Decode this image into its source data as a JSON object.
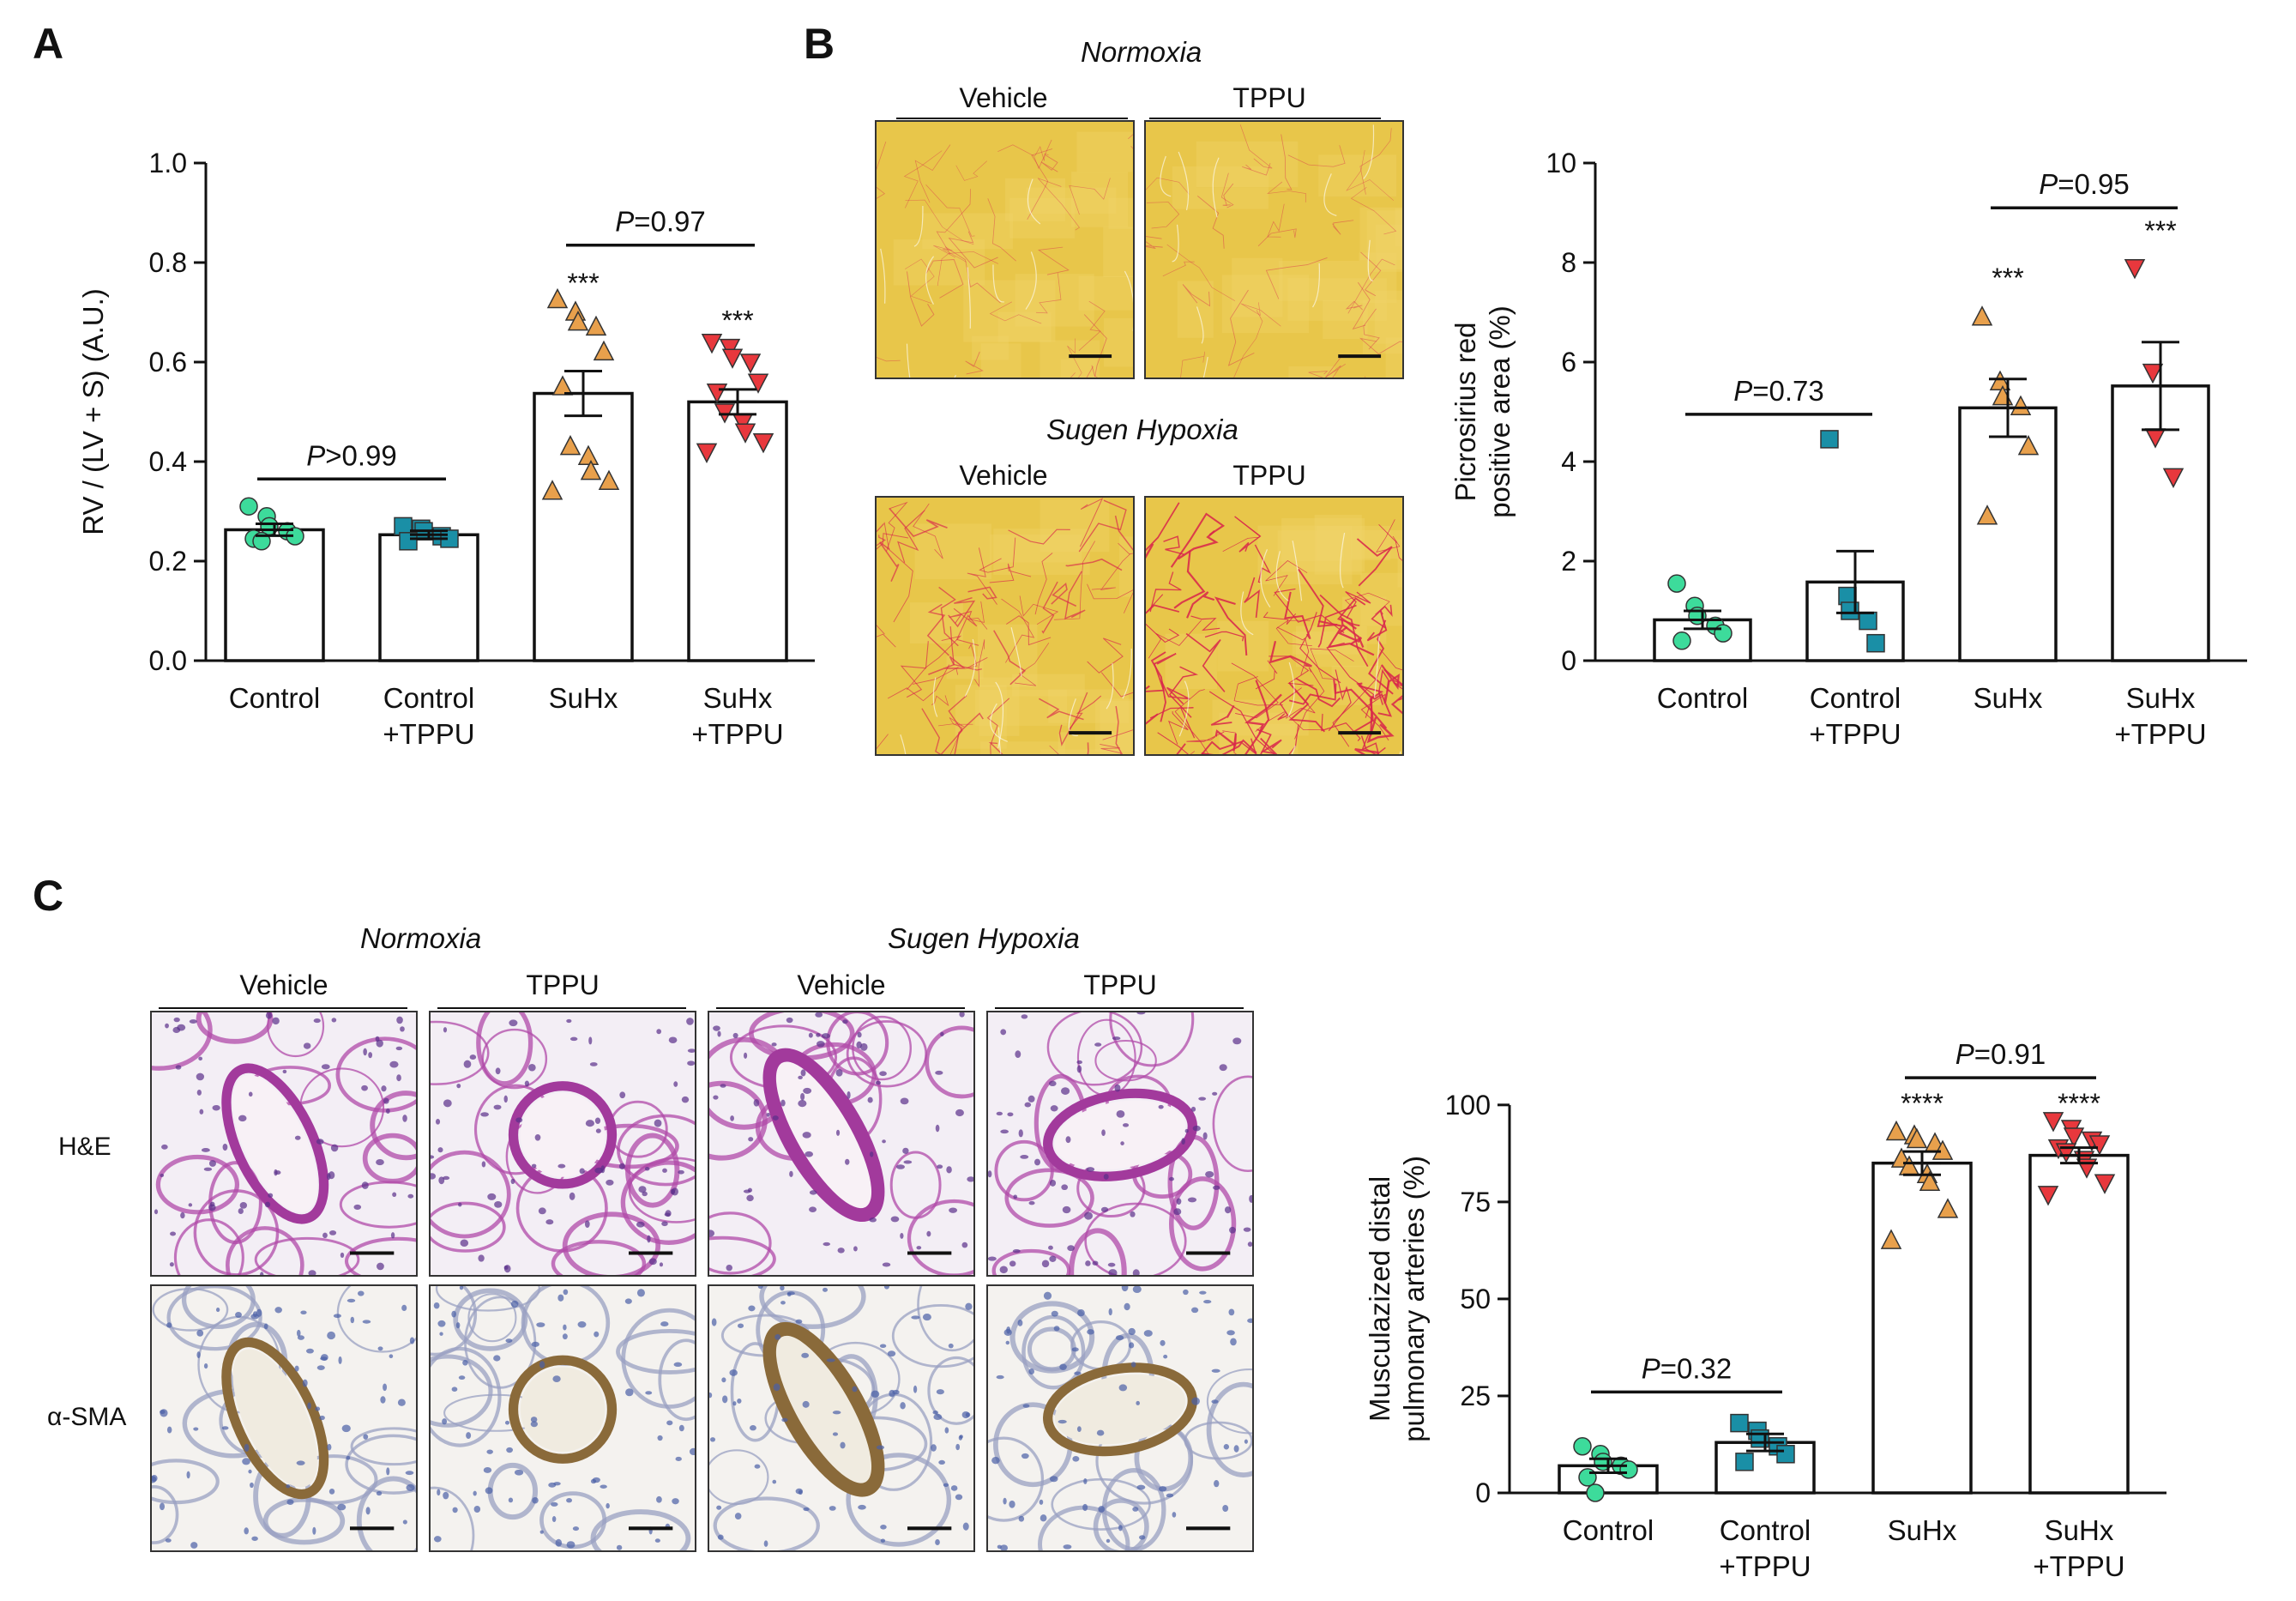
{
  "panel_labels": {
    "a": "A",
    "b": "B",
    "c": "C"
  },
  "panel_b_images": {
    "condition_top": "Normoxia",
    "condition_bottom": "Sugen Hypoxia",
    "col_left": "Vehicle",
    "col_right": "TPPU"
  },
  "panel_c_images": {
    "condition_left": "Normoxia",
    "condition_right": "Sugen Hypoxia",
    "cols": [
      "Vehicle",
      "TPPU",
      "Vehicle",
      "TPPU"
    ],
    "row_he": "H&E",
    "row_sma": "α-SMA"
  },
  "colors": {
    "control": "#3ddb9b",
    "control_tppu": "#1a8fa6",
    "suhx": "#e8a04c",
    "suhx_tppu": "#e8383d",
    "axis": "#111111",
    "sirius_bg": "#e8c64a",
    "he_bg": "#f3eef5",
    "ihc_bg": "#f4f2ef"
  },
  "chart_data": [
    {
      "id": "A",
      "type": "bar",
      "ylabel": "RV / (LV + S) (A.U.)",
      "ylim": [
        0,
        1.0
      ],
      "yticks": [
        "0.0",
        "0.2",
        "0.4",
        "0.6",
        "0.8",
        "1.0"
      ],
      "ytick_values": [
        0,
        0.2,
        0.4,
        0.6,
        0.8,
        1.0
      ],
      "categories": [
        [
          "Control"
        ],
        [
          "Control",
          "+TPPU"
        ],
        [
          "SuHx"
        ],
        [
          "SuHx",
          "+TPPU"
        ]
      ],
      "values": [
        0.263,
        0.253,
        0.537,
        0.52
      ],
      "sem": [
        0.012,
        0.008,
        0.045,
        0.025
      ],
      "points": [
        [
          0.31,
          0.29,
          0.27,
          0.26,
          0.25,
          0.245,
          0.24
        ],
        [
          0.27,
          0.265,
          0.26,
          0.25,
          0.245,
          0.24
        ],
        [
          0.725,
          0.7,
          0.68,
          0.67,
          0.62,
          0.55,
          0.43,
          0.41,
          0.38,
          0.36,
          0.34
        ],
        [
          0.64,
          0.63,
          0.61,
          0.6,
          0.56,
          0.54,
          0.5,
          0.48,
          0.46,
          0.44,
          0.42
        ]
      ],
      "markers": [
        "circle",
        "square",
        "triangle-up",
        "triangle-down"
      ],
      "stars": [
        "",
        "",
        "***",
        "***"
      ],
      "comparisons": [
        {
          "from": 0,
          "to": 1,
          "y": 0.365,
          "label_p": "P",
          "label_rest": ">0.99"
        },
        {
          "from": 2,
          "to": 3,
          "y": 0.835,
          "label_p": "P",
          "label_rest": "=0.97"
        }
      ],
      "star_y": [
        null,
        null,
        0.74,
        0.665
      ]
    },
    {
      "id": "B",
      "type": "bar",
      "ylabel": [
        "Picrosirius red",
        "positive area (%)"
      ],
      "ylim": [
        0,
        10
      ],
      "yticks": [
        "0",
        "2",
        "4",
        "6",
        "8",
        "10"
      ],
      "ytick_values": [
        0,
        2,
        4,
        6,
        8,
        10
      ],
      "categories": [
        [
          "Control"
        ],
        [
          "Control",
          "+TPPU"
        ],
        [
          "SuHx"
        ],
        [
          "SuHx",
          "+TPPU"
        ]
      ],
      "values": [
        0.82,
        1.58,
        5.08,
        5.52
      ],
      "sem": [
        0.18,
        0.62,
        0.58,
        0.88
      ],
      "points": [
        [
          1.55,
          1.1,
          0.9,
          0.7,
          0.55,
          0.4
        ],
        [
          4.45,
          1.3,
          1.0,
          0.8,
          0.35
        ],
        [
          6.9,
          5.6,
          5.3,
          5.1,
          4.3,
          2.9
        ],
        [
          7.9,
          5.8,
          4.5,
          3.7
        ]
      ],
      "markers": [
        "circle",
        "square",
        "triangle-up",
        "triangle-down"
      ],
      "stars": [
        "",
        "",
        "***",
        "***"
      ],
      "comparisons": [
        {
          "from": 0,
          "to": 1,
          "y": 4.95,
          "label_p": "P",
          "label_rest": "=0.73"
        },
        {
          "from": 2,
          "to": 3,
          "y": 9.1,
          "label_p": "P",
          "label_rest": "=0.95"
        }
      ],
      "star_y": [
        null,
        null,
        7.5,
        8.45
      ]
    },
    {
      "id": "C",
      "type": "bar",
      "ylabel": [
        "Musculazized distal",
        "pulmonary arteries (%)"
      ],
      "ylim": [
        0,
        115
      ],
      "yticks": [
        "0",
        "25",
        "50",
        "75",
        "100"
      ],
      "ytick_values": [
        0,
        25,
        50,
        75,
        100
      ],
      "categories": [
        [
          "Control"
        ],
        [
          "Control",
          "+TPPU"
        ],
        [
          "SuHx"
        ],
        [
          "SuHx",
          "+TPPU"
        ]
      ],
      "values": [
        7,
        13,
        85,
        87
      ],
      "sem": [
        1.8,
        2.2,
        3.0,
        2.0
      ],
      "points": [
        [
          12,
          10,
          8,
          7,
          6,
          4,
          0
        ],
        [
          18,
          16,
          14,
          12,
          10,
          8
        ],
        [
          93,
          92,
          91,
          90,
          88,
          86,
          84,
          82,
          80,
          73,
          65
        ],
        [
          96,
          94,
          92,
          91,
          90,
          89,
          88,
          86,
          84,
          80,
          77
        ]
      ],
      "markers": [
        "circle",
        "square",
        "triangle-up",
        "triangle-down"
      ],
      "stars": [
        "",
        "",
        "****",
        "****"
      ],
      "comparisons": [
        {
          "from": 0,
          "to": 1,
          "y": 26,
          "label_p": "P",
          "label_rest": "=0.32"
        },
        {
          "from": 2,
          "to": 3,
          "y": 107,
          "label_p": "P",
          "label_rest": "=0.91"
        }
      ],
      "star_y": [
        null,
        null,
        98,
        98
      ]
    }
  ]
}
